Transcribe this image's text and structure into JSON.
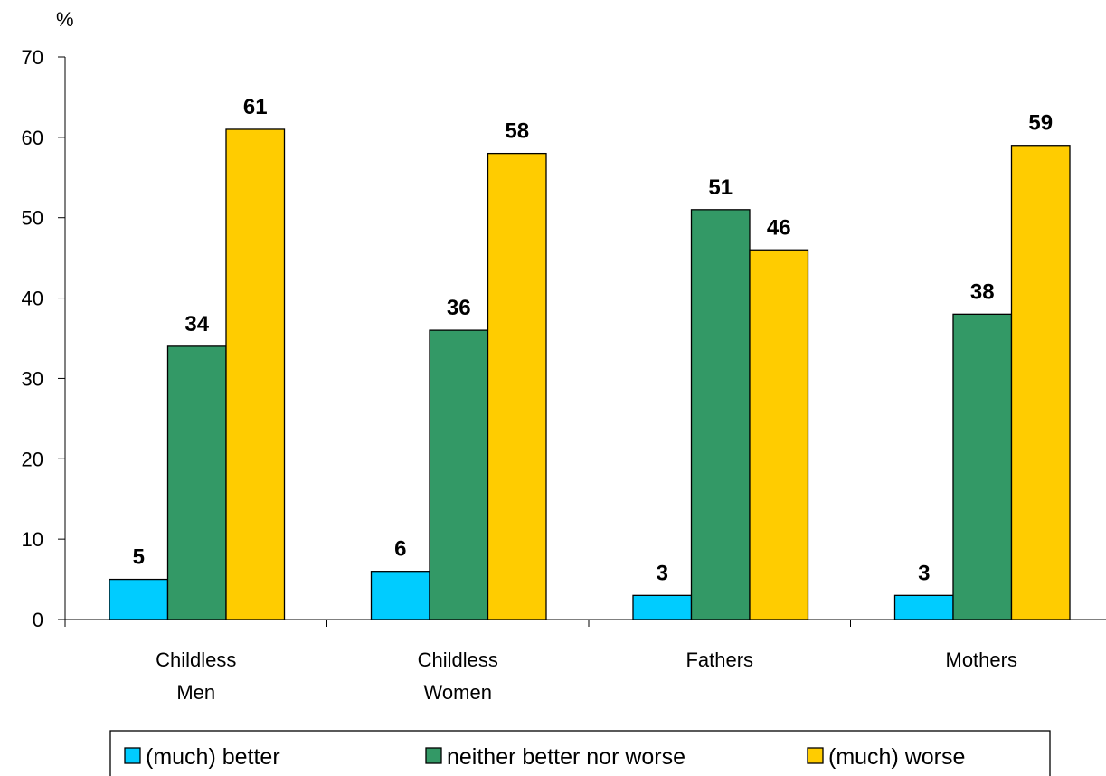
{
  "chart_data": {
    "type": "bar",
    "title": "",
    "xlabel": "",
    "ylabel": "%",
    "ylim": [
      0,
      70
    ],
    "yticks": [
      0,
      10,
      20,
      30,
      40,
      50,
      60,
      70
    ],
    "grid": false,
    "legend_position": "bottom",
    "categories": [
      [
        "Childless",
        "Men"
      ],
      [
        "Childless",
        "Women"
      ],
      [
        "Fathers"
      ],
      [
        "Mothers"
      ]
    ],
    "series": [
      {
        "name": "(much) better",
        "color": "#00ccff",
        "values": [
          5,
          6,
          3,
          3
        ]
      },
      {
        "name": "neither better nor worse",
        "color": "#339966",
        "values": [
          34,
          36,
          51,
          38
        ]
      },
      {
        "name": "(much) worse",
        "color": "#ffcc00",
        "values": [
          61,
          58,
          46,
          59
        ]
      }
    ]
  }
}
